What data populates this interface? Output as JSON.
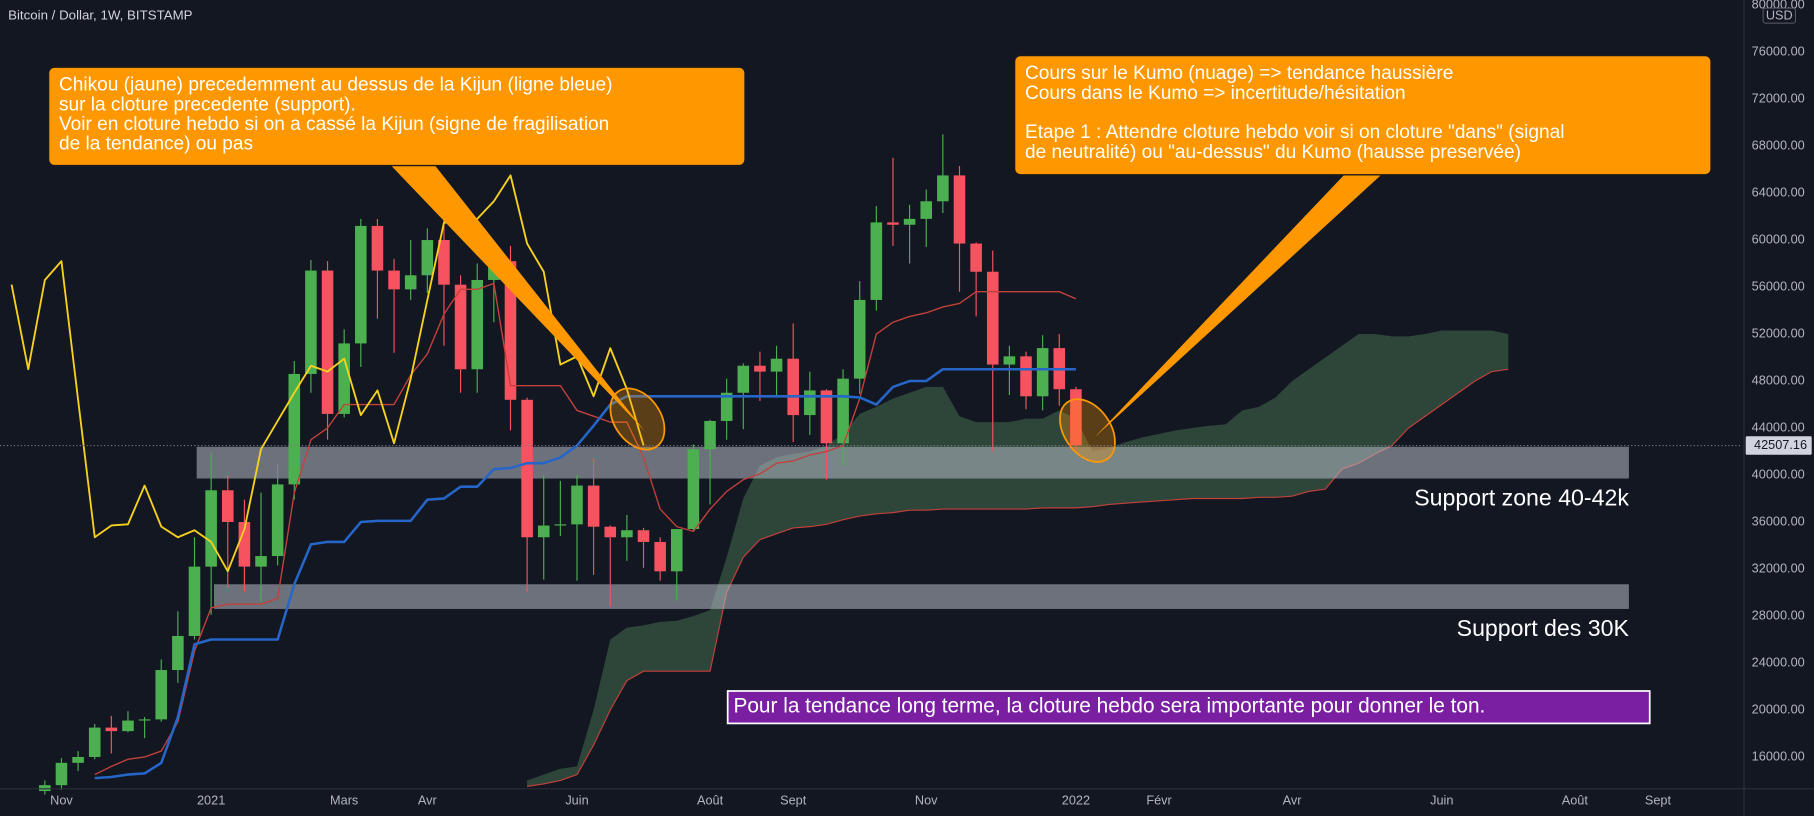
{
  "chart_data": {
    "type": "candlestick",
    "title": "Bitcoin / Dollar, 1W, BITSTAMP",
    "currency": "USD",
    "categories": [
      null,
      null,
      null,
      "Nov",
      null,
      null,
      null,
      null,
      null,
      null,
      null,
      null,
      "2021",
      null,
      null,
      null,
      null,
      null,
      null,
      null,
      "Mars",
      null,
      null,
      null,
      null,
      "Avr",
      null,
      null,
      null,
      null,
      null,
      null,
      null,
      null,
      "Juin",
      null,
      null,
      null,
      null,
      null,
      null,
      null,
      "Août",
      null,
      null,
      null,
      null,
      "Sept",
      null,
      null,
      null,
      null,
      null,
      null,
      null,
      "Nov",
      null,
      null,
      null,
      null,
      null,
      null,
      null,
      null,
      "2022",
      null,
      null,
      null,
      null,
      "Févr",
      null,
      null,
      null,
      null,
      null,
      null,
      null,
      "Avr",
      null,
      null,
      null,
      null,
      null,
      null,
      null,
      null,
      "Juin",
      null,
      null,
      null,
      null,
      null,
      null,
      null,
      "Août",
      null,
      null,
      null,
      null,
      "Sept",
      null,
      null,
      null,
      null,
      null
    ],
    "open": [
      null,
      null,
      13100,
      13600,
      15500,
      16000,
      18500,
      18200,
      19100,
      19200,
      23400,
      26300,
      32200,
      38700,
      36000,
      32200,
      33100,
      39200,
      48600,
      57400,
      45200,
      51200,
      61200,
      57400,
      55800,
      57000,
      60000,
      56200,
      49000,
      56600,
      58200,
      46400,
      34700,
      35700,
      35800,
      39100,
      35600,
      34700,
      35300,
      34300,
      31800,
      35400,
      42200,
      44600,
      47000,
      49300,
      48800,
      49900,
      45100,
      47200,
      42700,
      48200,
      54900,
      61500,
      61300,
      61800,
      63300,
      65500,
      59700,
      57300,
      49400,
      50100,
      46700,
      50800,
      47300,
      null,
      null,
      null,
      null,
      null,
      null,
      null,
      null,
      null,
      null,
      null,
      null,
      null,
      null,
      null,
      null,
      null,
      null,
      null,
      null,
      null,
      null,
      null,
      null,
      null,
      null,
      null,
      null,
      null,
      null,
      null,
      null,
      null,
      null,
      null,
      null,
      null,
      null,
      null,
      null
    ],
    "high": [
      null,
      null,
      14000,
      15900,
      16500,
      18800,
      19500,
      19900,
      19400,
      24300,
      28400,
      34700,
      41900,
      40000,
      37900,
      38500,
      40900,
      49700,
      58300,
      58200,
      52400,
      61800,
      61800,
      58400,
      60000,
      61000,
      64900,
      57000,
      58000,
      59000,
      59500,
      46600,
      40000,
      39500,
      40000,
      41400,
      35700,
      36600,
      35500,
      34700,
      35400,
      42600,
      44700,
      48200,
      49500,
      50500,
      51000,
      52900,
      48800,
      47300,
      49000,
      56500,
      62900,
      67000,
      63000,
      64300,
      69000,
      66300,
      59800,
      59100,
      51000,
      50500,
      51900,
      52000,
      47500,
      null,
      null,
      null,
      null,
      null,
      null,
      null,
      null,
      null,
      null,
      null,
      null,
      null,
      null,
      null,
      null,
      null,
      null,
      null,
      null,
      null,
      null,
      null,
      null,
      null,
      null,
      null,
      null,
      null,
      null,
      null,
      null,
      null,
      null,
      null,
      null,
      null,
      null,
      null,
      null
    ],
    "low": [
      null,
      null,
      12800,
      13200,
      14800,
      15800,
      16300,
      18100,
      17600,
      19000,
      22300,
      26000,
      28100,
      30400,
      30100,
      29200,
      32300,
      37900,
      47000,
      43000,
      44900,
      49200,
      53300,
      50400,
      54900,
      55500,
      51000,
      47000,
      47000,
      53000,
      43800,
      30000,
      31100,
      34800,
      31000,
      31500,
      28800,
      32700,
      32100,
      31000,
      29300,
      35200,
      37500,
      43000,
      43900,
      46300,
      46600,
      42800,
      43400,
      39600,
      40800,
      46900,
      54000,
      59500,
      58000,
      59400,
      62300,
      55600,
      53500,
      42000,
      46800,
      45600,
      45500,
      45900,
      42000,
      null,
      null,
      null,
      null,
      null,
      null,
      null,
      null,
      null,
      null,
      null,
      null,
      null,
      null,
      null,
      null,
      null,
      null,
      null,
      null,
      null,
      null,
      null,
      null,
      null,
      null,
      null,
      null,
      null,
      null,
      null,
      null,
      null,
      null,
      null,
      null,
      null,
      null,
      null,
      null
    ],
    "close": [
      null,
      null,
      13600,
      15500,
      16000,
      18500,
      18200,
      19100,
      19200,
      23400,
      26300,
      32200,
      38700,
      36000,
      32200,
      33100,
      39200,
      48600,
      57400,
      45200,
      51200,
      61200,
      57400,
      55800,
      57000,
      60000,
      56200,
      49000,
      56600,
      58200,
      46400,
      34700,
      35700,
      35800,
      39100,
      35600,
      34700,
      35300,
      34300,
      31800,
      35400,
      42200,
      44600,
      47000,
      49300,
      48800,
      49900,
      45100,
      47200,
      42700,
      48200,
      54900,
      61500,
      61300,
      61800,
      63300,
      65500,
      59700,
      57300,
      49400,
      50100,
      46700,
      50800,
      47300,
      42507.16,
      null,
      null,
      null,
      null,
      null,
      null,
      null,
      null,
      null,
      null,
      null,
      null,
      null,
      null,
      null,
      null,
      null,
      null,
      null,
      null,
      null,
      null,
      null,
      null,
      null,
      null,
      null,
      null,
      null,
      null,
      null,
      null,
      null,
      null,
      null,
      null,
      null,
      null,
      null,
      null
    ],
    "up_color": "#4caf50",
    "down_color": "#f7525f",
    "lines": [
      {
        "color": "#c2413b",
        "width": 1.2,
        "values": [
          null,
          null,
          null,
          null,
          null,
          14500,
          15200,
          15800,
          16000,
          16500,
          19000,
          25000,
          28700,
          29000,
          29000,
          29000,
          29500,
          38500,
          43000,
          44000,
          46000,
          46000,
          46000,
          46000,
          48500,
          50300,
          53700,
          55800,
          55800,
          56300,
          47600,
          47600,
          47600,
          47600,
          45500,
          45000,
          44500,
          44500,
          41500,
          37100,
          35600,
          35200,
          37100,
          38600,
          39600,
          40100,
          41000,
          41200,
          41700,
          42000,
          42500,
          46500,
          52000,
          53000,
          53500,
          53800,
          54300,
          54600,
          55600,
          55600,
          55600,
          55600,
          55600,
          55600,
          55000,
          null,
          null,
          null,
          null,
          null,
          null,
          null,
          null,
          null,
          null,
          null,
          null,
          null,
          null,
          null,
          null,
          null,
          null,
          null,
          null,
          null,
          null,
          null,
          null,
          null,
          null,
          null,
          null,
          null,
          null,
          null,
          null,
          null,
          null,
          null,
          null,
          null,
          null,
          null,
          null
        ]
      },
      {
        "color": "#2566c8",
        "width": 2.2,
        "values": [
          null,
          null,
          null,
          null,
          null,
          14200,
          14300,
          14500,
          14600,
          15500,
          19400,
          25600,
          26000,
          26000,
          26000,
          26000,
          26000,
          30700,
          34100,
          34300,
          34300,
          36000,
          36100,
          36100,
          36100,
          37900,
          38000,
          39000,
          39000,
          40500,
          40600,
          41000,
          41000,
          41500,
          42500,
          44200,
          46000,
          46700,
          46700,
          46700,
          46700,
          46700,
          46700,
          46700,
          46700,
          46700,
          46700,
          46700,
          46700,
          46700,
          46700,
          46600,
          46000,
          47500,
          48000,
          48000,
          49000,
          49000,
          49000,
          49000,
          49000,
          49000,
          49000,
          49000,
          49000,
          null,
          null,
          null,
          null,
          null,
          null,
          null,
          null,
          null,
          null,
          null,
          null,
          null,
          null,
          null,
          null,
          null,
          null,
          null,
          null,
          null,
          null,
          null,
          null,
          null,
          null,
          null,
          null,
          null,
          null,
          null,
          null,
          null,
          null,
          null,
          null,
          null,
          null,
          null,
          null
        ]
      },
      {
        "color": "#f6d21e",
        "width": 1.6,
        "values": [
          56200,
          49000,
          56600,
          58200,
          46400,
          34700,
          35700,
          35800,
          39100,
          35600,
          34700,
          35300,
          34300,
          31800,
          35400,
          42200,
          44600,
          47000,
          49300,
          48800,
          49900,
          45100,
          47200,
          42700,
          48200,
          54900,
          61500,
          61300,
          61800,
          63300,
          65500,
          59700,
          57300,
          49400,
          50100,
          46700,
          50800,
          47300,
          42507.16,
          null,
          null,
          null,
          null,
          null,
          null,
          null,
          null,
          null,
          null,
          null,
          null,
          null,
          null,
          null,
          null,
          null,
          null,
          null,
          null,
          null,
          null,
          null,
          null,
          null,
          null,
          null,
          null,
          null,
          null,
          null,
          null,
          null,
          null,
          null,
          null,
          null,
          null,
          null,
          null,
          null,
          null,
          null,
          null,
          null,
          null,
          null,
          null,
          null,
          null,
          null,
          null,
          null,
          null,
          null,
          null,
          null,
          null,
          null,
          null,
          null,
          null,
          null,
          null,
          null,
          null
        ]
      }
    ],
    "cloud": {
      "color": "#3b5a45",
      "line_color": "#c2413b",
      "upper": [
        null,
        null,
        null,
        null,
        null,
        null,
        null,
        null,
        null,
        null,
        null,
        null,
        null,
        null,
        null,
        null,
        null,
        null,
        null,
        null,
        null,
        null,
        null,
        null,
        null,
        null,
        null,
        null,
        null,
        null,
        null,
        14000,
        14500,
        15000,
        15200,
        20000,
        26000,
        27000,
        27200,
        27500,
        27600,
        28000,
        28500,
        33000,
        38000,
        40800,
        41500,
        41800,
        42000,
        42500,
        43500,
        45200,
        45800,
        46500,
        47000,
        47500,
        47500,
        45000,
        44500,
        44500,
        44500,
        44800,
        44800,
        45500,
        44800,
        42000,
        42300,
        42800,
        43200,
        43500,
        43800,
        44000,
        44200,
        44300,
        45500,
        45800,
        46600,
        48000,
        49000,
        50000,
        51000,
        52000,
        52000,
        51800,
        51800,
        52000,
        52300,
        52300,
        52300,
        52300,
        52000,
        null,
        null,
        null,
        null,
        null,
        null,
        null,
        null,
        null,
        null,
        null,
        null,
        null,
        null
      ],
      "lower": [
        null,
        null,
        null,
        null,
        null,
        null,
        null,
        null,
        null,
        null,
        null,
        null,
        null,
        null,
        null,
        null,
        null,
        null,
        null,
        null,
        null,
        null,
        null,
        null,
        null,
        null,
        null,
        null,
        null,
        null,
        null,
        13500,
        13700,
        14000,
        14500,
        17000,
        20000,
        22500,
        23300,
        23300,
        23300,
        23300,
        23300,
        30000,
        33000,
        34500,
        35000,
        35500,
        35600,
        35800,
        36200,
        36500,
        36700,
        36800,
        37000,
        37000,
        37100,
        37100,
        37100,
        37100,
        37100,
        37100,
        37200,
        37200,
        37200,
        37300,
        37500,
        37600,
        37700,
        37800,
        37900,
        38000,
        38000,
        38000,
        38000,
        38100,
        38100,
        38200,
        38600,
        38800,
        40500,
        41000,
        41800,
        42500,
        44000,
        45000,
        46000,
        47000,
        48000,
        48800,
        49000,
        null,
        null,
        null,
        null,
        null,
        null,
        null,
        null,
        null,
        null,
        null,
        null,
        null,
        null
      ]
    },
    "ylim": [
      13340,
      80430
    ],
    "yticks": [
      {
        "value": 16000,
        "label": "16000.00"
      },
      {
        "value": 20000,
        "label": "20000.00"
      },
      {
        "value": 24000,
        "label": "24000.00"
      },
      {
        "value": 28000,
        "label": "28000.00"
      },
      {
        "value": 32000,
        "label": "32000.00"
      },
      {
        "value": 36000,
        "label": "36000.00"
      },
      {
        "value": 40000,
        "label": "40000.00"
      },
      {
        "value": 44000,
        "label": "44000.00"
      },
      {
        "value": 48000,
        "label": "48000.00"
      },
      {
        "value": 52000,
        "label": "52000.00"
      },
      {
        "value": 56000,
        "label": "56000.00"
      },
      {
        "value": 60000,
        "label": "60000.00"
      },
      {
        "value": 64000,
        "label": "64000.00"
      },
      {
        "value": 68000,
        "label": "68000.00"
      },
      {
        "value": 72000,
        "label": "72000.00"
      },
      {
        "value": 76000,
        "label": "76000.00"
      },
      {
        "value": 80000,
        "label": "80000.00"
      }
    ],
    "grid": false,
    "last_price": 42507.16,
    "zones": [
      {
        "label": "Support zone 40-42k",
        "low": 39700,
        "high": 42400
      },
      {
        "label": "Support des 30K",
        "low": 28600,
        "high": 30700
      }
    ],
    "annotations": [
      {
        "lines": [
          "Chikou (jaune) precedemment au dessus de la Kijun (ligne bleue)",
          "sur la cloture precedente (support).",
          "Voir en cloture hebdo si on a cassé la Kijun (signe de fragilisation",
          "de la tendance) ou pas"
        ]
      },
      {
        "lines": [
          "Cours sur le Kumo (nuage) => tendance haussière",
          "Cours dans le Kumo => incertitude/hésitation",
          "Etape 1 : Attendre cloture hebdo voir si on cloture \"dans\" (signal",
          "de neutralité) ou \"au-dessus\" du Kumo (hausse preservée)"
        ]
      }
    ],
    "note": "Pour la tendance long terme, la cloture hebdo sera importante pour donner le ton."
  }
}
